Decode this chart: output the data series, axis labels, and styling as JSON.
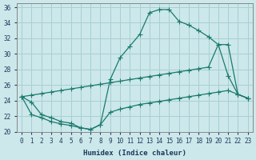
{
  "xlabel": "Humidex (Indice chaleur)",
  "bg_color": "#cce8ea",
  "grid_color": "#a8cfd2",
  "line_color": "#1a7a6e",
  "xlim": [
    -0.5,
    23.5
  ],
  "ylim": [
    20,
    36.5
  ],
  "xticks": [
    0,
    1,
    2,
    3,
    4,
    5,
    6,
    7,
    8,
    9,
    10,
    11,
    12,
    13,
    14,
    15,
    16,
    17,
    18,
    19,
    20,
    21,
    22,
    23
  ],
  "yticks": [
    20,
    22,
    24,
    26,
    28,
    30,
    32,
    34,
    36
  ],
  "curve_upper_x": [
    0,
    1,
    2,
    3,
    4,
    5,
    6,
    7,
    8,
    9,
    10,
    11,
    12,
    13,
    14,
    15,
    16,
    17,
    18,
    19,
    20,
    21,
    22,
    23
  ],
  "curve_upper_y": [
    24.5,
    23.8,
    22.2,
    21.8,
    21.3,
    21.1,
    20.5,
    20.3,
    20.9,
    26.7,
    29.5,
    31.0,
    32.5,
    35.3,
    35.7,
    35.7,
    34.2,
    33.7,
    33.0,
    32.2,
    31.2,
    27.2,
    24.8,
    24.3
  ],
  "curve_diag_x": [
    0,
    1,
    2,
    3,
    4,
    5,
    6,
    7,
    8,
    9,
    10,
    11,
    12,
    13,
    14,
    15,
    16,
    17,
    18,
    19,
    20,
    21,
    22,
    23
  ],
  "curve_diag_y": [
    24.5,
    24.7,
    24.9,
    25.1,
    25.3,
    25.5,
    25.7,
    25.9,
    26.1,
    26.3,
    26.5,
    26.7,
    26.9,
    27.1,
    27.3,
    27.5,
    27.7,
    27.9,
    28.1,
    28.3,
    31.2,
    31.2,
    24.8,
    24.3
  ],
  "curve_lower_x": [
    0,
    1,
    2,
    3,
    4,
    5,
    6,
    7,
    8,
    9,
    10,
    11,
    12,
    13,
    14,
    15,
    16,
    17,
    18,
    19,
    20,
    21,
    22,
    23
  ],
  "curve_lower_y": [
    24.5,
    22.2,
    21.8,
    21.3,
    21.0,
    20.8,
    20.5,
    20.3,
    20.9,
    22.5,
    22.9,
    23.2,
    23.5,
    23.7,
    23.9,
    24.1,
    24.3,
    24.5,
    24.7,
    24.9,
    25.1,
    25.3,
    24.8,
    24.3
  ]
}
